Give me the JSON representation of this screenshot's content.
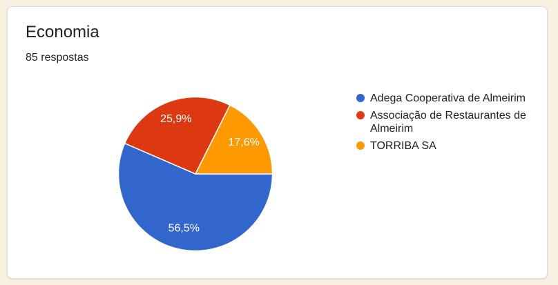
{
  "page": {
    "background_color": "#f8f0e1"
  },
  "card": {
    "title": "Economia",
    "subtitle": "85 respostas",
    "background_color": "#ffffff",
    "border_color": "#dadce0"
  },
  "chart_data": {
    "type": "pie",
    "title": "Economia",
    "subtitle": "85 respostas",
    "total_responses": 85,
    "start_angle_deg": 0,
    "direction": "clockwise",
    "legend_position": "right",
    "slices": [
      {
        "label": "Adega Cooperativa de Almeirim",
        "percent": 56.5,
        "percent_label": "56,5%",
        "color": "#3366cc"
      },
      {
        "label": "Associação de Restaurantes de Almeirim",
        "percent": 25.9,
        "percent_label": "25,9%",
        "color": "#dc3912"
      },
      {
        "label": "TORRIBA SA",
        "percent": 17.6,
        "percent_label": "17,6%",
        "color": "#ff9900"
      }
    ]
  }
}
